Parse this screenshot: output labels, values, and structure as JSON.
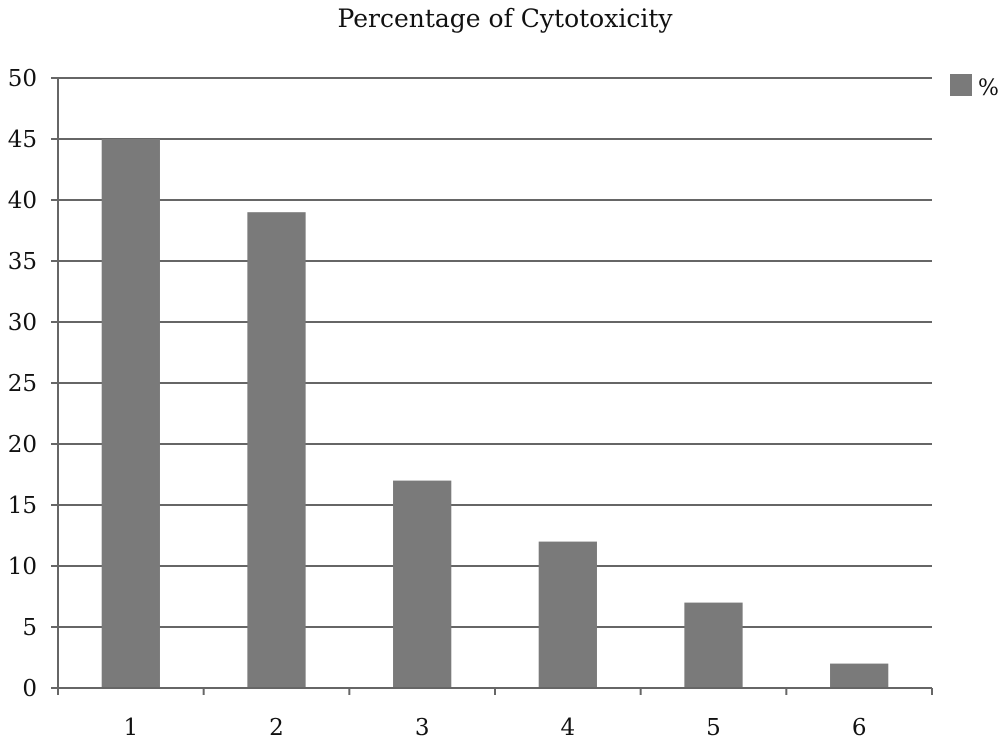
{
  "chart_data": {
    "type": "bar",
    "title": "Percentage of Cytotoxicity",
    "categories": [
      "1",
      "2",
      "3",
      "4",
      "5",
      "6"
    ],
    "series": [
      {
        "name": "%",
        "values": [
          45,
          39,
          17,
          12,
          7,
          2
        ]
      }
    ],
    "xlabel": "",
    "ylabel": "",
    "ylim": [
      0,
      50
    ],
    "yticks": [
      "0",
      "5",
      "10",
      "15",
      "20",
      "25",
      "30",
      "35",
      "40",
      "45",
      "50"
    ],
    "grid": true,
    "legend_position": "top-right",
    "bar_color": "#7a7a7a",
    "grid_color": "#666666",
    "axis_color": "#666666"
  }
}
